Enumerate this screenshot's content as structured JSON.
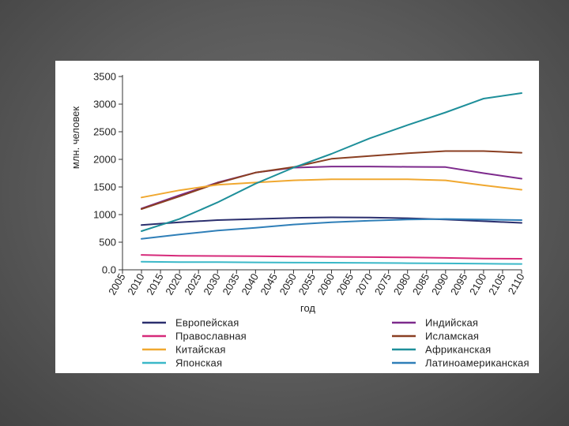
{
  "chart_data": {
    "type": "line",
    "xlabel": "год",
    "ylabel": "млн. человек",
    "ylim": [
      0,
      3500
    ],
    "yticks": [
      0,
      500,
      1000,
      1500,
      2000,
      2500,
      3000,
      3500
    ],
    "ytick_labels": [
      "0.0",
      "500",
      "1000",
      "1500",
      "2000",
      "2500",
      "3000",
      "3500"
    ],
    "xticks": [
      2005,
      2010,
      2015,
      2020,
      2025,
      2030,
      2035,
      2040,
      2045,
      2050,
      2055,
      2060,
      2065,
      2070,
      2075,
      2080,
      2085,
      2090,
      2095,
      2100,
      2105,
      2110
    ],
    "xlim": [
      2005,
      2110
    ],
    "grid": false,
    "legend_position": "bottom",
    "series": [
      {
        "name": "Европейская",
        "color": "#2b2f6e",
        "x": [
          2010,
          2020,
          2030,
          2040,
          2050,
          2060,
          2070,
          2080,
          2090,
          2100,
          2110
        ],
        "values": [
          810,
          860,
          900,
          920,
          940,
          950,
          945,
          935,
          910,
          880,
          850
        ]
      },
      {
        "name": "Индийская",
        "color": "#7d2a8c",
        "x": [
          2010,
          2020,
          2030,
          2040,
          2050,
          2060,
          2070,
          2080,
          2090,
          2100,
          2110
        ],
        "values": [
          1110,
          1350,
          1580,
          1760,
          1850,
          1870,
          1870,
          1865,
          1860,
          1750,
          1650
        ]
      },
      {
        "name": "Православная",
        "color": "#d62a7a",
        "x": [
          2010,
          2020,
          2030,
          2040,
          2050,
          2060,
          2070,
          2080,
          2090,
          2100,
          2110
        ],
        "values": [
          270,
          255,
          250,
          245,
          240,
          235,
          230,
          225,
          215,
          205,
          200
        ]
      },
      {
        "name": "Исламская",
        "color": "#8a3f22",
        "x": [
          2010,
          2020,
          2030,
          2040,
          2050,
          2060,
          2070,
          2080,
          2090,
          2100,
          2110
        ],
        "values": [
          1100,
          1330,
          1570,
          1760,
          1860,
          2010,
          2060,
          2110,
          2150,
          2150,
          2120
        ]
      },
      {
        "name": "Китайская",
        "color": "#f0a830",
        "x": [
          2010,
          2020,
          2030,
          2040,
          2050,
          2060,
          2070,
          2080,
          2090,
          2100,
          2110
        ],
        "values": [
          1310,
          1440,
          1540,
          1580,
          1620,
          1640,
          1640,
          1640,
          1620,
          1530,
          1450
        ]
      },
      {
        "name": "Африканская",
        "color": "#1e8f9a",
        "x": [
          2010,
          2020,
          2030,
          2040,
          2050,
          2060,
          2070,
          2080,
          2090,
          2100,
          2110
        ],
        "values": [
          700,
          920,
          1220,
          1560,
          1850,
          2100,
          2380,
          2620,
          2850,
          3100,
          3200
        ]
      },
      {
        "name": "Японская",
        "color": "#3bb8c8",
        "x": [
          2010,
          2020,
          2030,
          2040,
          2050,
          2060,
          2070,
          2080,
          2090,
          2100,
          2110
        ],
        "values": [
          145,
          140,
          138,
          135,
          130,
          128,
          125,
          120,
          115,
          110,
          105
        ]
      },
      {
        "name": "Латиноамериканская",
        "color": "#2f7fb8",
        "x": [
          2010,
          2020,
          2030,
          2040,
          2050,
          2060,
          2070,
          2080,
          2090,
          2100,
          2110
        ],
        "values": [
          560,
          640,
          710,
          760,
          820,
          860,
          890,
          910,
          920,
          910,
          900
        ]
      }
    ]
  }
}
